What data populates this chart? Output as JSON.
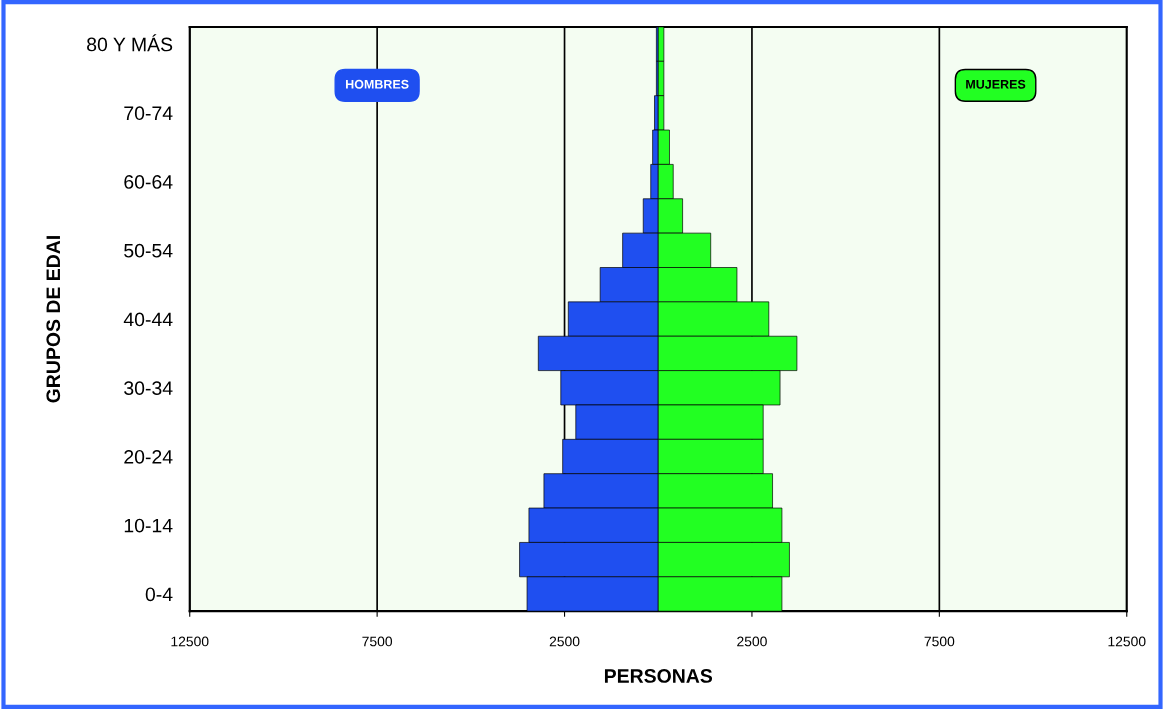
{
  "chart_data": {
    "type": "bar",
    "orientation": "horizontal",
    "stacked": true,
    "xlabel": "PERSONAS",
    "ylabel": "GRUPOS DE EDAI",
    "categories": [
      "80 Y MÁS",
      null,
      "70-74",
      null,
      "60-64",
      null,
      "50-54",
      null,
      "40-44",
      null,
      "30-34",
      null,
      "20-24",
      null,
      "10-14",
      null,
      "0-4"
    ],
    "series": [
      {
        "name": "HOMBRES",
        "color": "#1f4ff0",
        "values": [
          -50,
          -50,
          -100,
          -150,
          -200,
          -400,
          -950,
          -1550,
          -2400,
          -3200,
          -2600,
          -2200,
          -2550,
          -3050,
          -3450,
          -3700,
          -3500
        ]
      },
      {
        "name": "MUJERES",
        "color": "#22ff22",
        "values": [
          150,
          150,
          150,
          300,
          400,
          650,
          1400,
          2100,
          2950,
          3700,
          3250,
          2800,
          2800,
          3050,
          3300,
          3500,
          3300
        ]
      }
    ],
    "xlim": [
      -12500,
      12500
    ],
    "xticks": [
      {
        "value": -12500,
        "label": "12500"
      },
      {
        "value": -7500,
        "label": "7500"
      },
      {
        "value": -2500,
        "label": "2500"
      },
      2500,
      7500,
      12500
    ],
    "grid": "x",
    "legend": "top"
  }
}
